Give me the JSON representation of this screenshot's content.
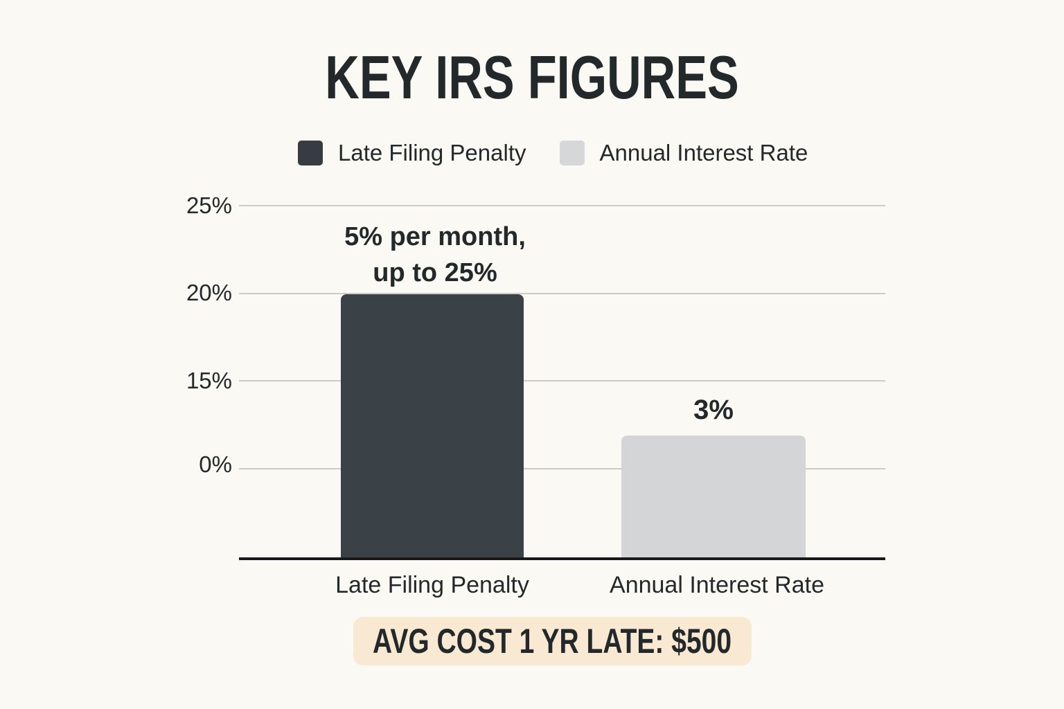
{
  "title": "KEY IRS FIGURES",
  "legend": {
    "items": [
      {
        "label": "Late Filing Penalty",
        "color": "#363c42"
      },
      {
        "label": "Annual Interest Rate",
        "color": "#d5d7d8"
      }
    ]
  },
  "y_axis": {
    "tick_labels": [
      "25%",
      "20%",
      "15%",
      "0%"
    ]
  },
  "bars": [
    {
      "category": "Late Filing Penalty",
      "annotation_line1": "5% per month,",
      "annotation_line2": "up to 25%",
      "color": "#3a4147"
    },
    {
      "category": "Annual Interest Rate",
      "annotation": "3%",
      "color": "#d3d5d6"
    }
  ],
  "footer_badge": {
    "text": "AVG COST 1 YR LATE: $500",
    "background": "#f9e9d2"
  },
  "colors": {
    "background": "#faf9f4",
    "text": "#23282b",
    "gridline": "#cbcbc8",
    "axis_baseline": "#17191b",
    "bar_dark": "#3a4147",
    "bar_light": "#d3d5d6",
    "badge_background": "#f9e9d2"
  },
  "chart_data": {
    "type": "bar",
    "title": "KEY IRS FIGURES",
    "categories": [
      "Late Filing Penalty",
      "Annual Interest Rate"
    ],
    "values": [
      20,
      3
    ],
    "annotations": [
      "5% per month, up to 25%",
      "3%"
    ],
    "bar_colors": [
      "#3a4147",
      "#d3d5d6"
    ],
    "xlabel": "",
    "ylabel": "",
    "y_tick_labels_shown": [
      "25%",
      "20%",
      "15%",
      "0%"
    ],
    "ylim": [
      0,
      25
    ],
    "grid": true,
    "legend_entries": [
      "Late Filing Penalty",
      "Annual Interest Rate"
    ],
    "legend_position": "top-center",
    "footer": "AVG COST 1 YR LATE: $500"
  }
}
